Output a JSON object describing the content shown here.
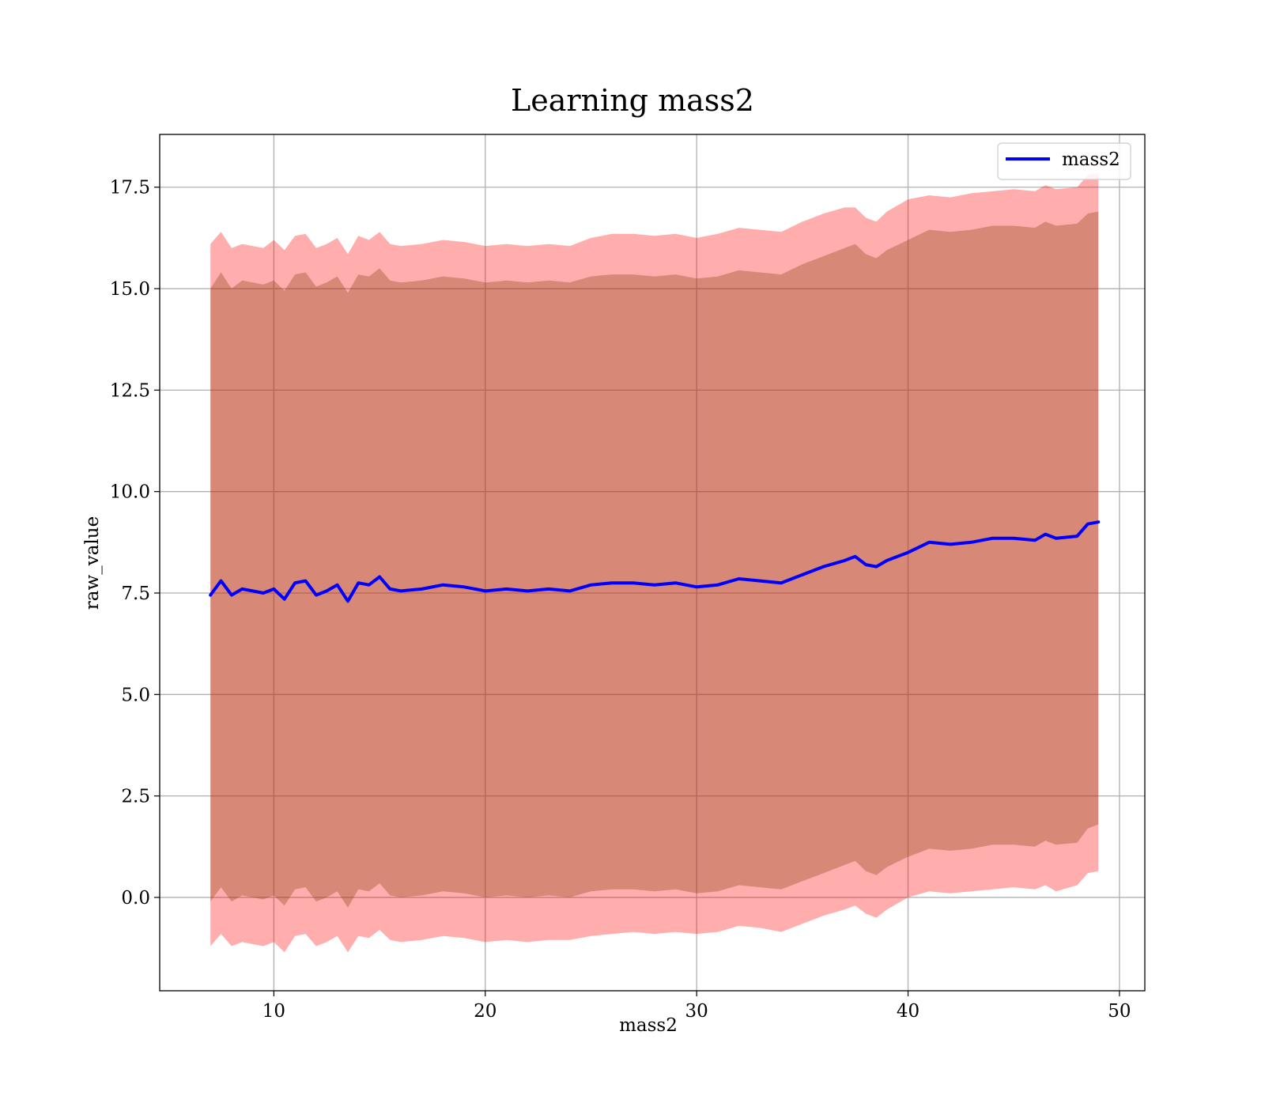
{
  "chart_data": {
    "type": "line",
    "title": "Learning mass2",
    "xlabel": "mass2",
    "ylabel": "raw_value",
    "xlim": [
      4.6,
      51.2
    ],
    "ylim": [
      -2.3,
      18.8
    ],
    "xticks": [
      10,
      20,
      30,
      40,
      50
    ],
    "xtick_labels": [
      "10",
      "20",
      "30",
      "40",
      "50"
    ],
    "yticks": [
      0.0,
      2.5,
      5.0,
      7.5,
      10.0,
      12.5,
      15.0,
      17.5
    ],
    "ytick_labels": [
      "0.0",
      "2.5",
      "5.0",
      "7.5",
      "10.0",
      "12.5",
      "15.0",
      "17.5"
    ],
    "grid": true,
    "legend": {
      "position": "top-right",
      "entries": [
        "mass2"
      ]
    },
    "series": [
      {
        "name": "mass2",
        "color": "#0000ff",
        "x": [
          7.0,
          7.5,
          8.0,
          8.5,
          9.0,
          9.5,
          10.0,
          10.5,
          11.0,
          11.5,
          12.0,
          12.5,
          13.0,
          13.5,
          14.0,
          14.5,
          15.0,
          15.5,
          16.0,
          17.0,
          18.0,
          19.0,
          20.0,
          21.0,
          22.0,
          23.0,
          24.0,
          25.0,
          26.0,
          27.0,
          28.0,
          29.0,
          30.0,
          31.0,
          32.0,
          33.0,
          34.0,
          35.0,
          36.0,
          37.0,
          37.5,
          38.0,
          38.5,
          39.0,
          40.0,
          41.0,
          42.0,
          43.0,
          44.0,
          45.0,
          46.0,
          46.5,
          47.0,
          48.0,
          48.5,
          49.0
        ],
        "y": [
          7.45,
          7.8,
          7.45,
          7.6,
          7.55,
          7.5,
          7.6,
          7.35,
          7.75,
          7.8,
          7.45,
          7.55,
          7.7,
          7.3,
          7.75,
          7.7,
          7.9,
          7.6,
          7.55,
          7.6,
          7.7,
          7.65,
          7.55,
          7.6,
          7.55,
          7.6,
          7.55,
          7.7,
          7.75,
          7.75,
          7.7,
          7.75,
          7.65,
          7.7,
          7.85,
          7.8,
          7.75,
          7.95,
          8.15,
          8.3,
          8.4,
          8.2,
          8.15,
          8.3,
          8.5,
          8.75,
          8.7,
          8.75,
          8.85,
          8.85,
          8.8,
          8.95,
          8.85,
          8.9,
          9.2,
          9.25
        ],
        "inner_band": {
          "color": "rgba(139,69,19,0.35)",
          "upper": [
            15.0,
            15.4,
            15.0,
            15.2,
            15.15,
            15.1,
            15.2,
            14.95,
            15.35,
            15.4,
            15.05,
            15.15,
            15.3,
            14.9,
            15.35,
            15.3,
            15.5,
            15.2,
            15.15,
            15.2,
            15.3,
            15.25,
            15.15,
            15.2,
            15.15,
            15.2,
            15.15,
            15.3,
            15.35,
            15.35,
            15.3,
            15.35,
            15.25,
            15.3,
            15.45,
            15.4,
            15.35,
            15.6,
            15.8,
            16.0,
            16.1,
            15.85,
            15.75,
            15.95,
            16.2,
            16.45,
            16.4,
            16.45,
            16.55,
            16.55,
            16.5,
            16.65,
            16.55,
            16.6,
            16.85,
            16.9
          ],
          "lower": [
            -0.1,
            0.25,
            -0.1,
            0.05,
            0.0,
            -0.05,
            0.05,
            -0.2,
            0.2,
            0.25,
            -0.1,
            0.0,
            0.15,
            -0.25,
            0.2,
            0.15,
            0.35,
            0.05,
            0.0,
            0.05,
            0.15,
            0.1,
            0.0,
            0.05,
            0.0,
            0.05,
            0.0,
            0.15,
            0.2,
            0.2,
            0.15,
            0.2,
            0.1,
            0.15,
            0.3,
            0.25,
            0.2,
            0.4,
            0.6,
            0.8,
            0.9,
            0.65,
            0.55,
            0.75,
            1.0,
            1.2,
            1.15,
            1.2,
            1.3,
            1.3,
            1.25,
            1.4,
            1.3,
            1.35,
            1.7,
            1.8
          ]
        },
        "outer_band": {
          "color": "rgba(255,0,0,0.32)",
          "upper": [
            16.1,
            16.4,
            16.0,
            16.1,
            16.05,
            16.0,
            16.2,
            15.95,
            16.3,
            16.35,
            16.0,
            16.1,
            16.25,
            15.85,
            16.3,
            16.2,
            16.4,
            16.1,
            16.05,
            16.1,
            16.2,
            16.15,
            16.05,
            16.1,
            16.05,
            16.1,
            16.05,
            16.25,
            16.35,
            16.35,
            16.3,
            16.35,
            16.25,
            16.35,
            16.5,
            16.45,
            16.4,
            16.65,
            16.85,
            17.0,
            17.0,
            16.75,
            16.65,
            16.9,
            17.2,
            17.3,
            17.25,
            17.35,
            17.4,
            17.45,
            17.4,
            17.55,
            17.45,
            17.5,
            17.8,
            17.85
          ],
          "lower": [
            -1.2,
            -0.9,
            -1.2,
            -1.1,
            -1.15,
            -1.2,
            -1.1,
            -1.35,
            -0.95,
            -0.9,
            -1.2,
            -1.1,
            -0.95,
            -1.35,
            -0.95,
            -1.0,
            -0.8,
            -1.05,
            -1.1,
            -1.05,
            -0.95,
            -1.0,
            -1.1,
            -1.05,
            -1.1,
            -1.05,
            -1.05,
            -0.95,
            -0.9,
            -0.85,
            -0.9,
            -0.85,
            -0.9,
            -0.85,
            -0.7,
            -0.75,
            -0.85,
            -0.65,
            -0.45,
            -0.3,
            -0.2,
            -0.4,
            -0.5,
            -0.3,
            0.0,
            0.15,
            0.1,
            0.15,
            0.2,
            0.25,
            0.2,
            0.3,
            0.15,
            0.3,
            0.6,
            0.65
          ]
        }
      }
    ]
  }
}
